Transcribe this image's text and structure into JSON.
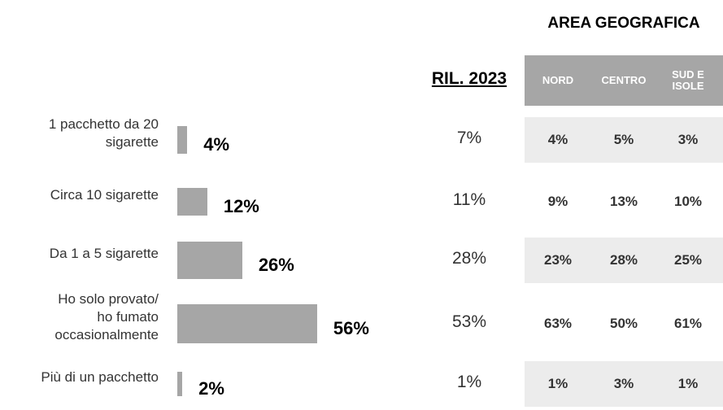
{
  "chart_data": {
    "type": "bar",
    "orientation": "horizontal",
    "categories": [
      "1 pacchetto da 20\nsigarette",
      "Circa 10 sigarette",
      "Da 1 a 5 sigarette",
      "Ho solo provato/\nho fumato\noccasionalmente",
      "Più di un pacchetto"
    ],
    "values": [
      4,
      12,
      26,
      56,
      2
    ],
    "value_labels": [
      "4%",
      "12%",
      "26%",
      "56%",
      "2%"
    ],
    "color": "#a6a6a6"
  },
  "table": {
    "title": "AREA GEOGRAFICA",
    "columns": [
      "RIL. 2023",
      "NORD",
      "CENTRO",
      "SUD E ISOLE"
    ],
    "rows": [
      [
        "7%",
        "4%",
        "5%",
        "3%"
      ],
      [
        "11%",
        "9%",
        "13%",
        "10%"
      ],
      [
        "28%",
        "23%",
        "28%",
        "25%"
      ],
      [
        "53%",
        "63%",
        "50%",
        "61%"
      ],
      [
        "1%",
        "1%",
        "3%",
        "1%"
      ]
    ]
  }
}
